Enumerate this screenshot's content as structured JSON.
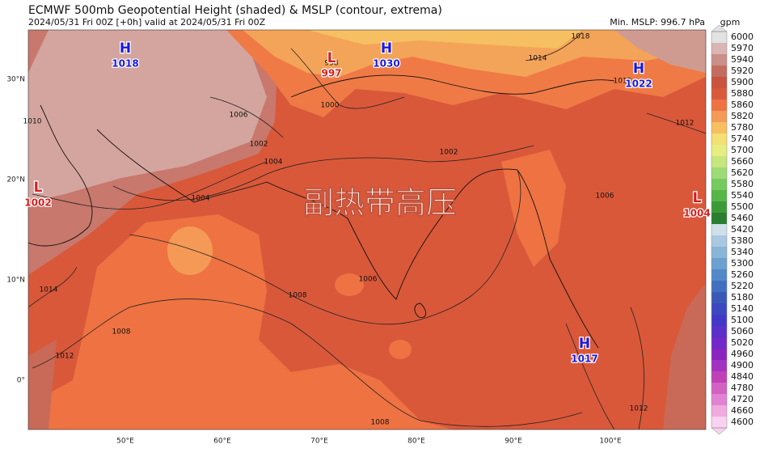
{
  "header": {
    "title": "ECMWF 500mb Geopotential Height (shaded) & MSLP (contour, extrema)",
    "subtitle": "2024/05/31 Fri 00Z [+0h] valid at 2024/05/31 Fri 00Z",
    "min_mslp": "Min. MSLP: 996.7 hPa"
  },
  "colorbar": {
    "unit": "gpm",
    "levels": [
      6000,
      5970,
      5940,
      5920,
      5900,
      5880,
      5860,
      5820,
      5780,
      5740,
      5700,
      5660,
      5620,
      5580,
      5540,
      5500,
      5460,
      5420,
      5380,
      5340,
      5300,
      5260,
      5220,
      5180,
      5140,
      5100,
      5060,
      5020,
      4960,
      4900,
      4840,
      4780,
      4720,
      4660,
      4600
    ],
    "colors": [
      "#e2e2e2",
      "#d8b6b4",
      "#cc8e88",
      "#c46c60",
      "#c8543e",
      "#d95a3a",
      "#ee7242",
      "#f49a56",
      "#f7bf62",
      "#f4df72",
      "#e6ee82",
      "#c6e67e",
      "#9edb74",
      "#76ca60",
      "#56b648",
      "#3a9a38",
      "#2b7e30",
      "#d0e0ea",
      "#aac8e0",
      "#8ab4d8",
      "#6ca0d0",
      "#5288c8",
      "#4270c0",
      "#3a58b8",
      "#3c48c0",
      "#4238c8",
      "#5a30c8",
      "#7228c8",
      "#8a22c0",
      "#a232c0",
      "#c040b8",
      "#d262c2",
      "#e282d2",
      "#f0aae0",
      "#f8d2f0"
    ]
  },
  "overlay_text": "副热带高压",
  "latitude_labels": [
    "30°N",
    "20°N",
    "10°N",
    "0°"
  ],
  "longitude_labels": [
    "50°E",
    "60°E",
    "70°E",
    "80°E",
    "90°E",
    "100°E"
  ],
  "pressure_centers": [
    {
      "type": "H",
      "value": "1018"
    },
    {
      "type": "L",
      "value": "997"
    },
    {
      "type": "H",
      "value": "1030"
    },
    {
      "type": "H",
      "value": "1022"
    },
    {
      "type": "L",
      "value": "1002"
    },
    {
      "type": "L",
      "value": "1004"
    },
    {
      "type": "H",
      "value": "1017"
    }
  ],
  "contour_labels": [
    "998",
    "1000",
    "1006",
    "1002",
    "1004",
    "1002",
    "1008",
    "1006",
    "1008",
    "1012",
    "1014",
    "1010",
    "1018",
    "1014",
    "1012",
    "1012",
    "1006",
    "1004",
    "1008",
    "1012"
  ]
}
